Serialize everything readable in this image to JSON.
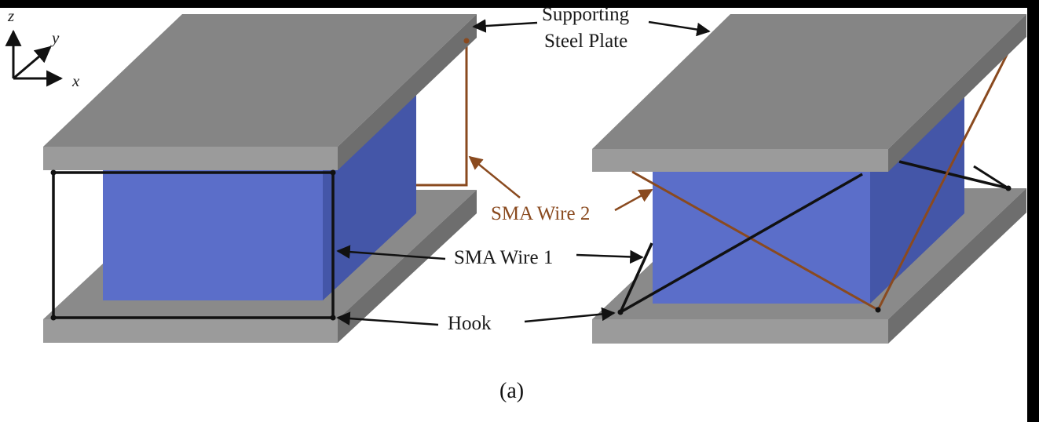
{
  "axes": {
    "z": "z",
    "y": "y",
    "x": "x"
  },
  "labels": {
    "supporting_line1": "Supporting",
    "supporting_line2": "Steel Plate",
    "sma_wire_2": "SMA Wire 2",
    "sma_wire_1": "SMA Wire 1",
    "hook": "Hook"
  },
  "caption": "(a)",
  "colors": {
    "background": "#000000",
    "panel": "#ffffff",
    "plate_top": "#8a8a8a",
    "plate_front": "#9b9b9b",
    "plate_side": "#6e6e6e",
    "block_front": "#5b6ec9",
    "block_side": "#4456a8",
    "wire_1": "#111111",
    "wire_2": "#8a4a1f"
  }
}
